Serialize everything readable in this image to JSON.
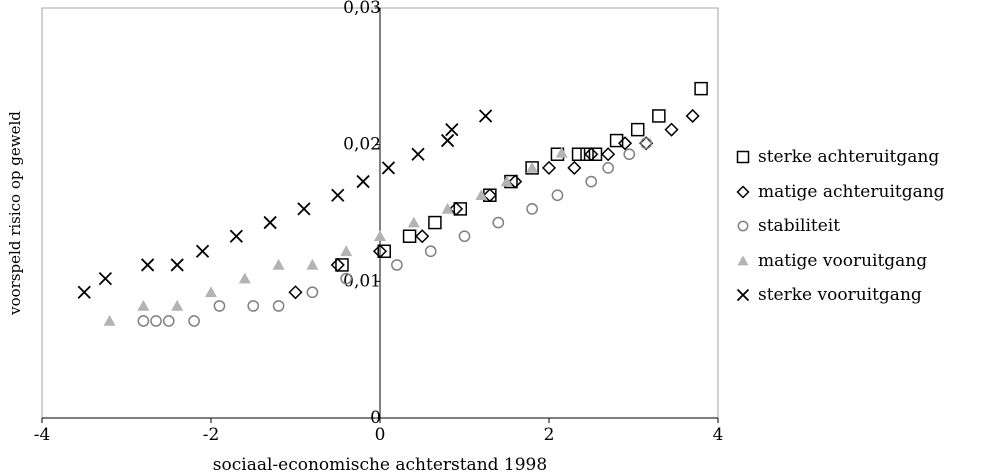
{
  "chart_data": {
    "type": "scatter",
    "title": "",
    "xlabel": "sociaal-economische achterstand 1998",
    "ylabel": "voorspeld risico op geweld",
    "xlim": [
      -4,
      4
    ],
    "ylim": [
      0,
      0.03
    ],
    "x_ticks": [
      -4,
      -2,
      0,
      2,
      4
    ],
    "x_tick_labels": [
      "-4",
      "-2",
      "0",
      "2",
      "4"
    ],
    "y_ticks": [
      0,
      0.01,
      0.02,
      0.03
    ],
    "y_tick_labels": [
      "0",
      "0,01",
      "0,02",
      "0,03"
    ],
    "grid": false,
    "legend_position": "right",
    "series": [
      {
        "name": "sterke achteruitgang",
        "marker": "square",
        "color": "#000000",
        "points": [
          [
            -0.45,
            0.0112
          ],
          [
            0.05,
            0.0122
          ],
          [
            0.35,
            0.0133
          ],
          [
            0.65,
            0.0143
          ],
          [
            0.95,
            0.0153
          ],
          [
            1.3,
            0.0163
          ],
          [
            1.55,
            0.0173
          ],
          [
            1.8,
            0.0183
          ],
          [
            2.1,
            0.0193
          ],
          [
            2.35,
            0.0193
          ],
          [
            2.45,
            0.0193
          ],
          [
            2.55,
            0.0193
          ],
          [
            2.8,
            0.0203
          ],
          [
            3.05,
            0.0211
          ],
          [
            3.3,
            0.0221
          ],
          [
            3.8,
            0.0241
          ]
        ]
      },
      {
        "name": "matige achteruitgang",
        "marker": "diamond",
        "color": "#000000",
        "points": [
          [
            -1.0,
            0.0092
          ],
          [
            -0.5,
            0.0112
          ],
          [
            0.0,
            0.0122
          ],
          [
            0.5,
            0.0133
          ],
          [
            0.9,
            0.0153
          ],
          [
            1.3,
            0.0163
          ],
          [
            1.6,
            0.0173
          ],
          [
            2.0,
            0.0183
          ],
          [
            2.3,
            0.0183
          ],
          [
            2.5,
            0.0193
          ],
          [
            2.7,
            0.0193
          ],
          [
            2.9,
            0.0201
          ],
          [
            3.15,
            0.0201
          ],
          [
            3.45,
            0.0211
          ],
          [
            3.7,
            0.0221
          ]
        ]
      },
      {
        "name": "stabiliteit",
        "marker": "circle",
        "color": "#808080",
        "points": [
          [
            -2.8,
            0.0071
          ],
          [
            -2.65,
            0.0071
          ],
          [
            -2.5,
            0.0071
          ],
          [
            -2.2,
            0.0071
          ],
          [
            -1.9,
            0.0082
          ],
          [
            -1.5,
            0.0082
          ],
          [
            -1.2,
            0.0082
          ],
          [
            -0.8,
            0.0092
          ],
          [
            -0.4,
            0.0102
          ],
          [
            0.2,
            0.0112
          ],
          [
            0.6,
            0.0122
          ],
          [
            1.0,
            0.0133
          ],
          [
            1.4,
            0.0143
          ],
          [
            1.8,
            0.0153
          ],
          [
            2.1,
            0.0163
          ],
          [
            2.5,
            0.0173
          ],
          [
            2.7,
            0.0183
          ],
          [
            2.95,
            0.0193
          ],
          [
            3.15,
            0.0201
          ]
        ]
      },
      {
        "name": "matige vooruitgang",
        "marker": "triangle",
        "color": "#b3b3b3",
        "points": [
          [
            -3.2,
            0.0071
          ],
          [
            -2.8,
            0.0082
          ],
          [
            -2.4,
            0.0082
          ],
          [
            -2.0,
            0.0092
          ],
          [
            -1.6,
            0.0102
          ],
          [
            -1.2,
            0.0112
          ],
          [
            -0.8,
            0.0112
          ],
          [
            -0.4,
            0.0122
          ],
          [
            0.0,
            0.0133
          ],
          [
            0.4,
            0.0143
          ],
          [
            0.8,
            0.0153
          ],
          [
            1.2,
            0.0163
          ],
          [
            1.5,
            0.0173
          ],
          [
            1.8,
            0.0183
          ],
          [
            2.15,
            0.0194
          ]
        ]
      },
      {
        "name": "sterke vooruitgang",
        "marker": "x",
        "color": "#000000",
        "points": [
          [
            -3.5,
            0.0092
          ],
          [
            -3.25,
            0.0102
          ],
          [
            -2.75,
            0.0112
          ],
          [
            -2.4,
            0.0112
          ],
          [
            -2.1,
            0.0122
          ],
          [
            -1.7,
            0.0133
          ],
          [
            -1.3,
            0.0143
          ],
          [
            -0.9,
            0.0153
          ],
          [
            -0.5,
            0.0163
          ],
          [
            -0.2,
            0.0173
          ],
          [
            0.1,
            0.0183
          ],
          [
            0.45,
            0.0193
          ],
          [
            0.8,
            0.0203
          ],
          [
            0.85,
            0.0211
          ],
          [
            1.25,
            0.0221
          ]
        ]
      }
    ]
  }
}
